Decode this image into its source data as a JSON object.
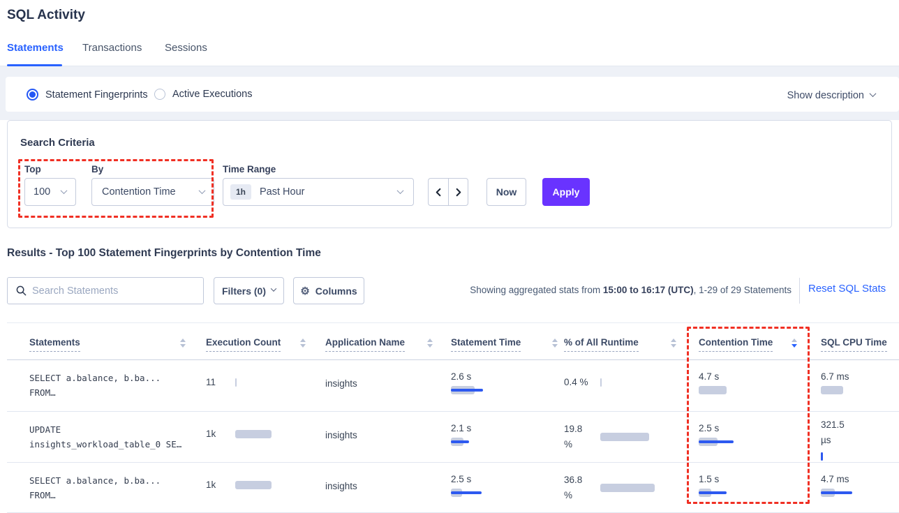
{
  "page_title": "SQL Activity",
  "tabs": [
    {
      "label": "Statements"
    },
    {
      "label": "Transactions"
    },
    {
      "label": "Sessions"
    }
  ],
  "fingerprint_toggle": {
    "options": [
      {
        "label": "Statement Fingerprints",
        "selected": true
      },
      {
        "label": "Active Executions",
        "selected": false
      }
    ],
    "show_description_label": "Show description"
  },
  "search_criteria": {
    "heading": "Search Criteria",
    "top_label": "Top",
    "top_value": "100",
    "by_label": "By",
    "by_value": "Contention Time",
    "time_range_label": "Time Range",
    "time_range_badge": "1h",
    "time_range_value": "Past Hour",
    "now_label": "Now",
    "apply_label": "Apply"
  },
  "results": {
    "heading": "Results - Top 100 Statement Fingerprints by Contention Time",
    "search_placeholder": "Search Statements",
    "filters_label": "Filters (0)",
    "columns_label": "Columns",
    "columns_icon": "⚙",
    "showing_prefix": "Showing aggregated stats from ",
    "showing_range": "15:00 to 16:17 (UTC)",
    "showing_suffix": ", 1-29 of 29 Statements",
    "reset_label": "Reset SQL Stats"
  },
  "table": {
    "headers": [
      "Statements",
      "Execution Count",
      "Application Name",
      "Statement Time",
      "% of All Runtime",
      "Contention Time",
      "SQL CPU Time"
    ],
    "sorted_column": "Contention Time",
    "sort_direction": "desc",
    "rows": [
      {
        "statement_line1": "SELECT a.balance, b.ba...",
        "statement_line2": "FROM…",
        "execution_count": "11",
        "application_name": "insights",
        "statement_time": "2.6 s",
        "pct_all_runtime": "0.4 %",
        "contention_time": "4.7 s",
        "sql_cpu_time": "6.7 ms",
        "bars": {
          "exec": {
            "g": 2,
            "b": 0
          },
          "stmt": {
            "g": 34,
            "b": 46
          },
          "pct": {
            "g": 2,
            "b": 0
          },
          "cont": {
            "g": 40,
            "b": 0
          },
          "cpu": {
            "g": 32,
            "b": 0
          }
        }
      },
      {
        "statement_line1": "UPDATE",
        "statement_line2": "insights_workload_table_0 SE…",
        "execution_count": "1k",
        "application_name": "insights",
        "statement_time": "2.1 s",
        "pct_all_runtime": "19.8 %",
        "contention_time": "2.5 s",
        "sql_cpu_time": "321.5 µs",
        "bars": {
          "exec": {
            "g": 52,
            "b": 0
          },
          "stmt": {
            "g": 18,
            "b": 26
          },
          "pct": {
            "g": 70,
            "b": 0
          },
          "cont": {
            "g": 27,
            "b": 50
          },
          "cpu": {
            "g": 0,
            "b": 3,
            "t": 1
          }
        }
      },
      {
        "statement_line1": "SELECT a.balance, b.ba...",
        "statement_line2": "FROM…",
        "execution_count": "1k",
        "application_name": "insights",
        "statement_time": "2.5 s",
        "pct_all_runtime": "36.8 %",
        "contention_time": "1.5 s",
        "sql_cpu_time": "4.7 ms",
        "bars": {
          "exec": {
            "g": 52,
            "b": 0
          },
          "stmt": {
            "g": 16,
            "b": 44
          },
          "pct": {
            "g": 78,
            "b": 0
          },
          "cont": {
            "g": 18,
            "b": 40
          },
          "cpu": {
            "g": 20,
            "b": 45
          }
        }
      }
    ]
  },
  "colors": {
    "accent_blue": "#2962ff",
    "apply_purple": "#6933ff",
    "annotation_red": "#f03024",
    "bar_gray": "#c7cee0",
    "bar_blue": "#2d59f0"
  }
}
